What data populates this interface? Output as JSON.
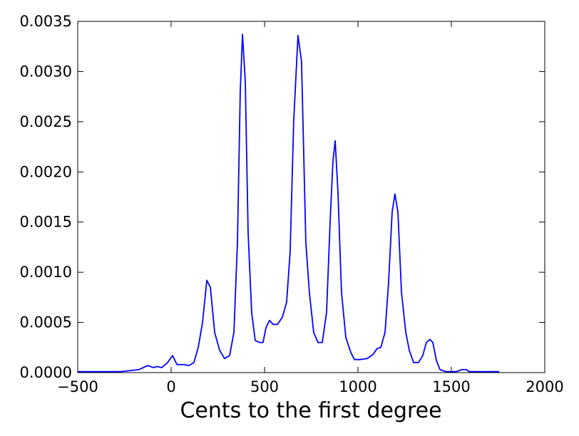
{
  "chart_data": {
    "type": "line",
    "xlabel": "Cents to the first degree",
    "xlim": [
      -500,
      2000
    ],
    "ylim": [
      0,
      0.0035
    ],
    "xticks": [
      {
        "value": -500,
        "label": "−500"
      },
      0,
      500,
      1000,
      1500,
      2000
    ],
    "yticks": [
      {
        "value": 0,
        "label": "0.0000"
      },
      {
        "value": 0.0005,
        "label": "0.0005"
      },
      {
        "value": 0.001,
        "label": "0.0010"
      },
      {
        "value": 0.0015,
        "label": "0.0015"
      },
      {
        "value": 0.002,
        "label": "0.0020"
      },
      {
        "value": 0.0025,
        "label": "0.0025"
      },
      {
        "value": 0.003,
        "label": "0.0030"
      },
      {
        "value": 0.0035,
        "label": "0.0035"
      }
    ],
    "grid": false,
    "series": [
      {
        "color": "#0000ff",
        "x": [
          -500,
          -420,
          -267,
          -172,
          -126,
          -95,
          -76,
          -50,
          -19,
          8,
          31,
          69,
          95,
          122,
          145,
          168,
          191,
          210,
          233,
          260,
          286,
          313,
          336,
          355,
          370,
          382,
          397,
          412,
          431,
          450,
          473,
          492,
          508,
          527,
          546,
          569,
          595,
          618,
          637,
          656,
          679,
          698,
          721,
          740,
          763,
          786,
          809,
          832,
          851,
          866,
          878,
          893,
          912,
          935,
          962,
          981,
          1011,
          1050,
          1080,
          1103,
          1122,
          1145,
          1164,
          1183,
          1198,
          1214,
          1233,
          1256,
          1275,
          1298,
          1324,
          1347,
          1366,
          1385,
          1401,
          1420,
          1439,
          1469,
          1527,
          1557,
          1580,
          1595,
          1756
        ],
        "values": [
          1e-05,
          1e-05,
          1e-05,
          3e-05,
          7e-05,
          5e-05,
          6e-05,
          5e-05,
          0.0001,
          0.00017,
          8e-05,
          8e-05,
          7e-05,
          0.0001,
          0.00025,
          0.0005,
          0.00092,
          0.00085,
          0.0004,
          0.00022,
          0.00014,
          0.00017,
          0.0004,
          0.0013,
          0.0028,
          0.00337,
          0.0029,
          0.0014,
          0.0006,
          0.00032,
          0.0003,
          0.0003,
          0.00045,
          0.00052,
          0.00048,
          0.00048,
          0.00055,
          0.0007,
          0.0012,
          0.0025,
          0.00336,
          0.0031,
          0.0013,
          0.0008,
          0.0004,
          0.0003,
          0.0003,
          0.0006,
          0.0015,
          0.0021,
          0.00231,
          0.0018,
          0.0008,
          0.00035,
          0.0002,
          0.00013,
          0.00013,
          0.00014,
          0.00018,
          0.00024,
          0.00025,
          0.0004,
          0.0009,
          0.0016,
          0.00178,
          0.0016,
          0.0008,
          0.0004,
          0.00022,
          0.0001,
          0.0001,
          0.00017,
          0.0003,
          0.00033,
          0.0003,
          0.00012,
          3e-05,
          1e-05,
          1e-05,
          3e-05,
          3e-05,
          1e-05,
          1e-05
        ]
      }
    ]
  }
}
